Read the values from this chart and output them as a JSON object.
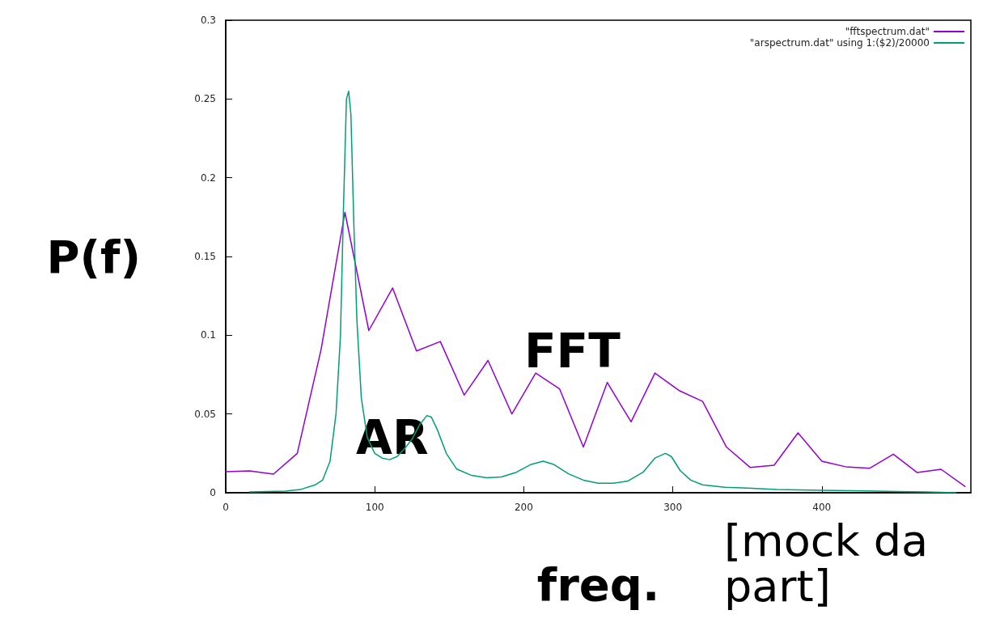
{
  "chart_data": {
    "type": "line",
    "xlabel": "freq.",
    "ylabel": "P(f)",
    "xlim": [
      0,
      500
    ],
    "xticks": [
      0,
      100,
      200,
      300,
      400
    ],
    "ylim": [
      0,
      0.3
    ],
    "yticks": [
      0,
      0.05,
      0.1,
      0.15,
      0.2,
      0.25,
      0.3
    ],
    "grid": false,
    "legend": "top right",
    "marker": "none",
    "line_style": "solid",
    "series": [
      {
        "name": "\"fftspectrum.dat\"",
        "color": "#9400d3",
        "x": [
          0,
          16,
          32,
          48,
          64,
          80,
          96,
          112,
          128,
          144,
          160,
          176,
          192,
          208,
          224,
          240,
          256,
          272,
          288,
          304,
          320,
          336,
          352,
          368,
          384,
          400,
          416,
          432,
          448,
          464,
          480,
          496
        ],
        "values": [
          0.0134,
          0.0139,
          0.0118,
          0.025,
          0.091,
          0.178,
          0.103,
          0.13,
          0.09,
          0.096,
          0.062,
          0.084,
          0.05,
          0.076,
          0.066,
          0.029,
          0.07,
          0.045,
          0.076,
          0.065,
          0.058,
          0.029,
          0.016,
          0.0175,
          0.038,
          0.02,
          0.0165,
          0.0155,
          0.0245,
          0.0128,
          0.0149,
          0.004
        ]
      },
      {
        "name": "\"arspectrum.dat\" using 1:($2)/20000",
        "color": "#009e73",
        "x": [
          16,
          40,
          50,
          60,
          65,
          70,
          74,
          77,
          79,
          81,
          82.5,
          84,
          86,
          88,
          91,
          95,
          100,
          105,
          110,
          115,
          120,
          125,
          130,
          135,
          138,
          142,
          148,
          155,
          165,
          175,
          185,
          195,
          205,
          213,
          220,
          230,
          240,
          250,
          260,
          270,
          280,
          288,
          295,
          299,
          305,
          312,
          320,
          335,
          350,
          370,
          400,
          430,
          450,
          470,
          490
        ],
        "values": [
          0.0005,
          0.001,
          0.002,
          0.005,
          0.008,
          0.02,
          0.05,
          0.1,
          0.18,
          0.25,
          0.255,
          0.24,
          0.17,
          0.11,
          0.06,
          0.035,
          0.025,
          0.022,
          0.021,
          0.023,
          0.028,
          0.034,
          0.043,
          0.049,
          0.048,
          0.04,
          0.025,
          0.015,
          0.011,
          0.0095,
          0.01,
          0.013,
          0.018,
          0.02,
          0.018,
          0.012,
          0.008,
          0.006,
          0.006,
          0.0075,
          0.013,
          0.022,
          0.025,
          0.023,
          0.014,
          0.008,
          0.005,
          0.0035,
          0.003,
          0.002,
          0.0015,
          0.0012,
          0.0008,
          0.0005,
          0
        ]
      }
    ],
    "annotations": [
      "FFT",
      "AR",
      "[mock da\npart]"
    ]
  }
}
